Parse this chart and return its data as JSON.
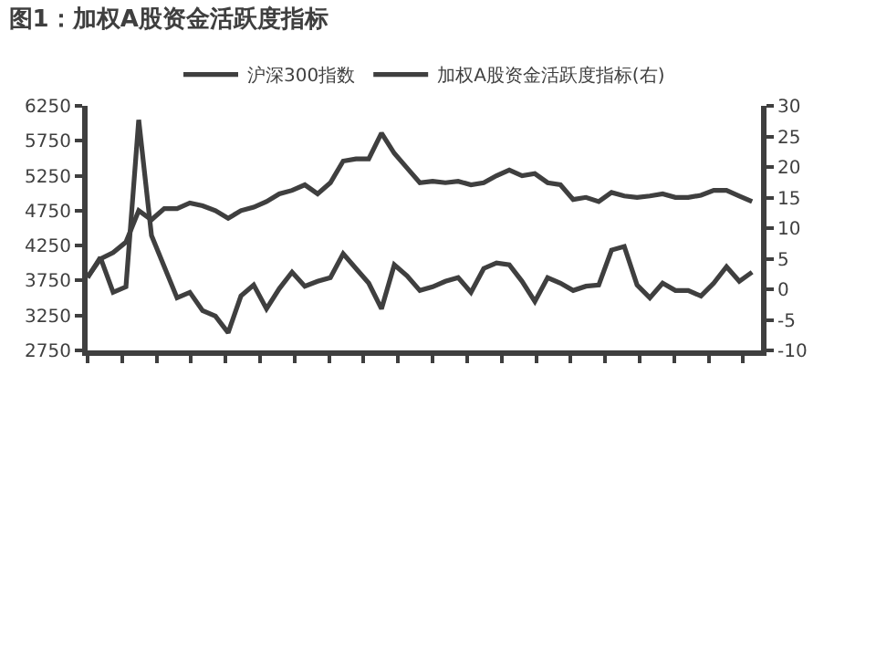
{
  "chart_data": {
    "type": "line",
    "title": "图1：加权A股资金活跃度指标",
    "categories": [
      null,
      null,
      null,
      null,
      null,
      null,
      null,
      null,
      null,
      null,
      null,
      null,
      null,
      null,
      null,
      null,
      null,
      null,
      null,
      null,
      null,
      null,
      null,
      null,
      null,
      null,
      null,
      null,
      null,
      null,
      null,
      null,
      null,
      null,
      null,
      null,
      null,
      null,
      null,
      null,
      null,
      null,
      null,
      null,
      null,
      null,
      null,
      null,
      null,
      null,
      null,
      null,
      null
    ],
    "ylim": [
      2750,
      6250
    ],
    "yticks": [
      2750,
      3250,
      3750,
      4250,
      4750,
      5250,
      5750,
      6250
    ],
    "y2lim": [
      -10,
      30
    ],
    "y2ticks": [
      -10,
      -5,
      0,
      5,
      10,
      15,
      20,
      25,
      30
    ],
    "legend": "top",
    "line_style": "solid",
    "series": [
      {
        "name": "沪深300指数",
        "color": "#3f3f3f",
        "values": [
          3800,
          4060,
          4150,
          4300,
          4750,
          4620,
          4780,
          4780,
          4860,
          4820,
          4750,
          4640,
          4750,
          4800,
          4880,
          4990,
          5040,
          5120,
          4990,
          5150,
          5460,
          5490,
          5490,
          5860,
          5570,
          5360,
          5150,
          5170,
          5150,
          5170,
          5120,
          5150,
          5250,
          5330,
          5250,
          5280,
          5150,
          5120,
          4910,
          4940,
          4880,
          5010,
          4960,
          4940,
          4960,
          4990,
          4940,
          4940,
          4970,
          5040,
          5040,
          4960,
          4880
        ]
      },
      {
        "name": "加权A股资金活跃度指标(右)",
        "color": "#3f3f3f",
        "axis": "y2",
        "values": [
          1.9,
          5.2,
          -0.5,
          0.4,
          27.7,
          8.8,
          3.7,
          -1.4,
          -0.5,
          -3.5,
          -4.4,
          -7.1,
          -1.1,
          0.7,
          -3.2,
          0.1,
          2.8,
          0.5,
          1.3,
          1.9,
          5.8,
          3.4,
          1.0,
          -3.2,
          4.0,
          2.2,
          -0.2,
          0.4,
          1.3,
          1.9,
          -0.5,
          3.4,
          4.3,
          4.0,
          1.3,
          -2.0,
          1.9,
          1.0,
          -0.2,
          0.5,
          0.7,
          6.4,
          7.0,
          0.7,
          -1.4,
          1.0,
          -0.2,
          -0.2,
          -1.1,
          1.0,
          3.7,
          1.3,
          2.8
        ]
      }
    ]
  }
}
